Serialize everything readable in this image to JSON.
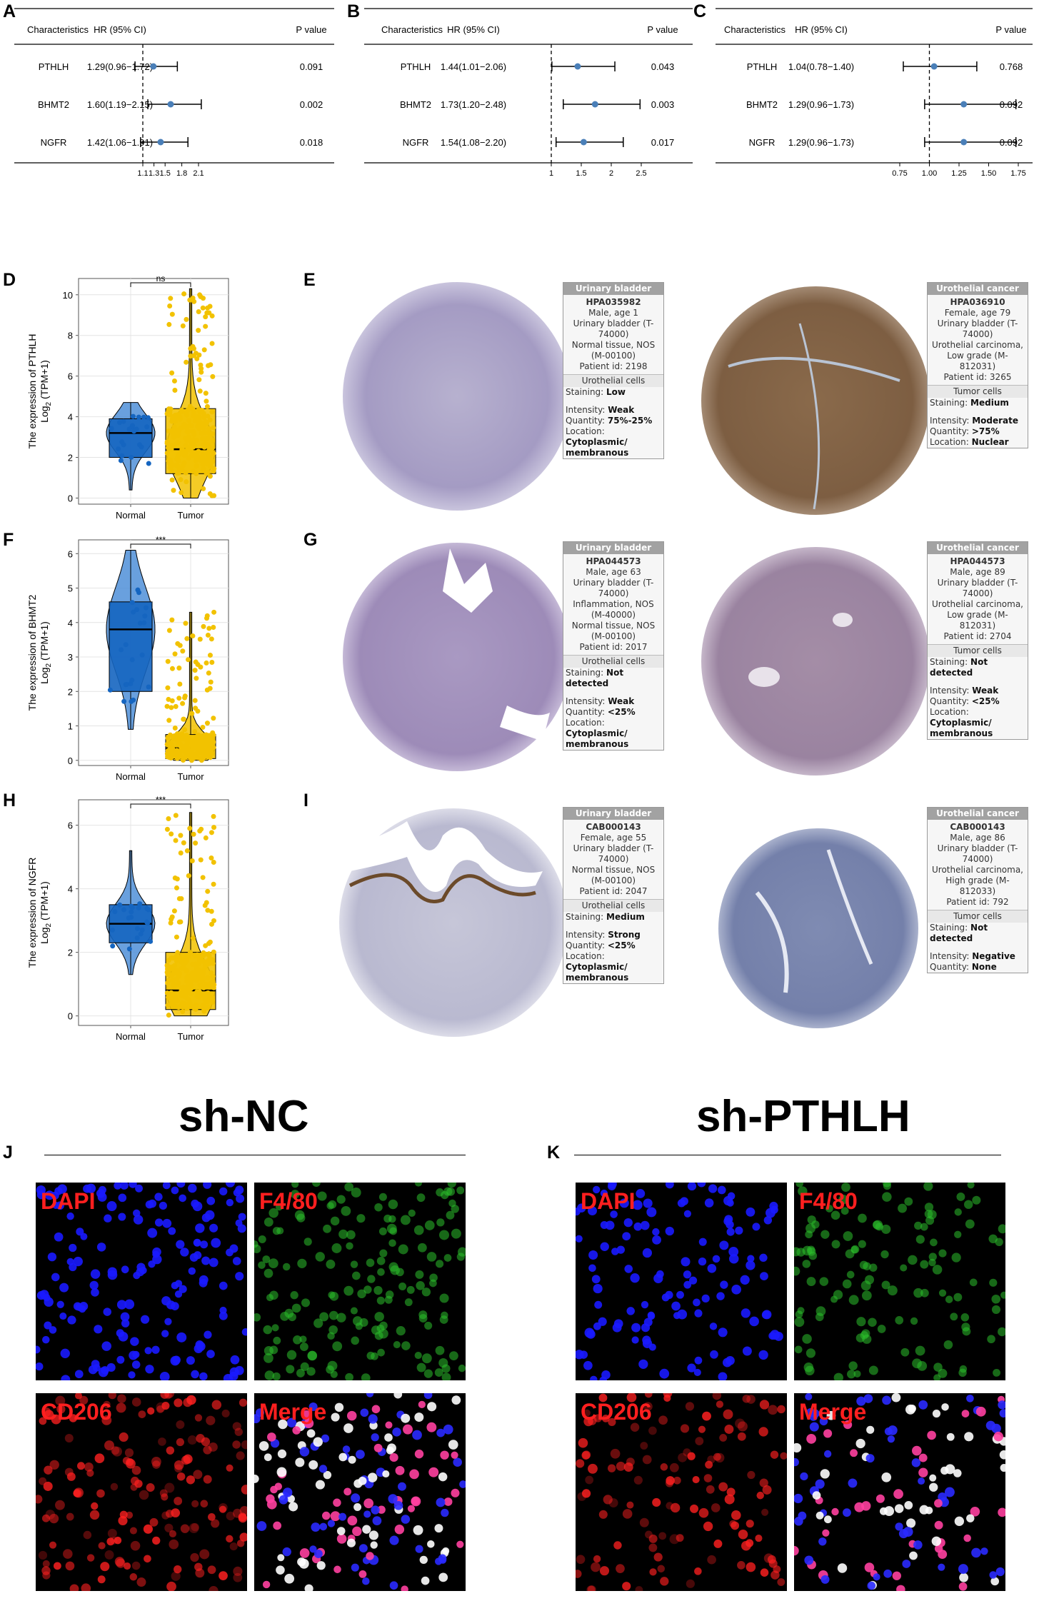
{
  "panel_letters": {
    "A": "A",
    "B": "B",
    "C": "C",
    "D": "D",
    "E": "E",
    "F": "F",
    "G": "G",
    "H": "H",
    "I": "I",
    "J": "J",
    "K": "K"
  },
  "forest_headers": {
    "characteristics": "Characteristics",
    "hr": "HR (95% CI)",
    "pvalue": "P value"
  },
  "boxplot_text": {
    "ylabel_prefix": "The expression of",
    "ylabel_unit": "Log",
    "ylabel_sub": "2",
    "ylabel_rest": " (TPM+1)",
    "normal": "Normal",
    "tumor": "Tumor"
  },
  "ihc_cards": [
    {
      "title": "Urinary bladder",
      "code": "HPA035982",
      "meta": "Male, age 1\nUrinary bladder (T-74000)\nNormal tissue, NOS (M-00100)\nPatient id: 2198",
      "cell": "Urothelial cells",
      "staining": "Low",
      "intensity": "Weak",
      "quantity": "75%-25%",
      "location": "Cytoplasmic/ membranous"
    },
    {
      "title": "Urothelial cancer",
      "code": "HPA036910",
      "meta": "Female, age 79\nUrinary bladder (T-74000)\nUrothelial carcinoma, Low grade (M-812031)\nPatient id: 3265",
      "cell": "Tumor cells",
      "staining": "Medium",
      "intensity": "Moderate",
      "quantity": ">75%",
      "location": "Nuclear"
    },
    {
      "title": "Urinary bladder",
      "code": "HPA044573",
      "meta": "Male, age 63\nUrinary bladder (T-74000)\nInflammation, NOS (M-40000)\nNormal tissue, NOS (M-00100)\nPatient id: 2017",
      "cell": "Urothelial cells",
      "staining": "Not detected",
      "intensity": "Weak",
      "quantity": "<25%",
      "location": "Cytoplasmic/ membranous"
    },
    {
      "title": "Urothelial cancer",
      "code": "HPA044573",
      "meta": "Male, age 89\nUrinary bladder (T-74000)\nUrothelial carcinoma, Low grade (M-812031)\nPatient id: 2704",
      "cell": "Tumor cells",
      "staining": "Not detected",
      "intensity": "Weak",
      "quantity": "<25%",
      "location": "Cytoplasmic/ membranous"
    },
    {
      "title": "Urinary bladder",
      "code": "CAB000143",
      "meta": "Female, age 55\nUrinary bladder (T-74000)\nNormal tissue, NOS (M-00100)\nPatient id: 2047",
      "cell": "Urothelial cells",
      "staining": "Medium",
      "intensity": "Strong",
      "quantity": "<25%",
      "location": "Cytoplasmic/ membranous"
    },
    {
      "title": "Urothelial cancer",
      "code": "CAB000143",
      "meta": "Male, age 86\nUrinary bladder (T-74000)\nUrothelial carcinoma, High grade (M-812033)\nPatient id: 792",
      "cell": "Tumor cells",
      "staining": "Not detected",
      "intensity": "Negative",
      "quantity": "None",
      "location": ""
    }
  ],
  "ihc_field_labels": {
    "staining": "Staining:",
    "intensity": "Intensity:",
    "quantity": "Quantity:",
    "location": "Location:"
  },
  "fluo_titles": {
    "left": "sh-NC",
    "right": "sh-PTHLH"
  },
  "fluo_channels": [
    "DAPI",
    "F4/80",
    "CD206",
    "Merge"
  ],
  "colors": {
    "normal": "#1565c0",
    "normal_light": "#4f8fd8",
    "tumor": "#f2c200",
    "point": "#4a7fb8",
    "forest_line": "#000000"
  },
  "chart_data": [
    {
      "id": "A",
      "type": "forest",
      "xticks": [
        1.1,
        1.3,
        1.5,
        1.8,
        2.1
      ],
      "xlim": [
        1.1,
        2.1
      ],
      "ref": 1.1,
      "rows": [
        {
          "name": "PTHLH",
          "hr_text": "1.29(0.96−1.72)",
          "hr": 1.29,
          "lo": 0.96,
          "hi": 1.72,
          "p": "0.091"
        },
        {
          "name": "BHMT2",
          "hr_text": "1.60(1.19−2.15)",
          "hr": 1.6,
          "lo": 1.19,
          "hi": 2.15,
          "p": "0.002"
        },
        {
          "name": "NGFR",
          "hr_text": "1.42(1.06−1.91)",
          "hr": 1.42,
          "lo": 1.06,
          "hi": 1.91,
          "p": "0.018"
        }
      ]
    },
    {
      "id": "B",
      "type": "forest",
      "xticks": [
        1.0,
        1.5,
        2.0,
        2.5
      ],
      "xlim": [
        1.0,
        2.5
      ],
      "ref": 1.0,
      "rows": [
        {
          "name": "PTHLH",
          "hr_text": "1.44(1.01−2.06)",
          "hr": 1.44,
          "lo": 1.01,
          "hi": 2.06,
          "p": "0.043"
        },
        {
          "name": "BHMT2",
          "hr_text": "1.73(1.20−2.48)",
          "hr": 1.73,
          "lo": 1.2,
          "hi": 2.48,
          "p": "0.003"
        },
        {
          "name": "NGFR",
          "hr_text": "1.54(1.08−2.20)",
          "hr": 1.54,
          "lo": 1.08,
          "hi": 2.2,
          "p": "0.017"
        }
      ]
    },
    {
      "id": "C",
      "type": "forest",
      "xticks": [
        0.75,
        1.0,
        1.25,
        1.5,
        1.75
      ],
      "xtick_labels": [
        "0.75",
        "1.00",
        "1.25",
        "1.50",
        "1.75"
      ],
      "xlim": [
        0.75,
        1.75
      ],
      "ref": 1.0,
      "rows": [
        {
          "name": "PTHLH",
          "hr_text": "1.04(0.78−1.40)",
          "hr": 1.04,
          "lo": 0.78,
          "hi": 1.4,
          "p": "0.768"
        },
        {
          "name": "BHMT2",
          "hr_text": "1.29(0.96−1.73)",
          "hr": 1.29,
          "lo": 0.96,
          "hi": 1.73,
          "p": "0.092"
        },
        {
          "name": "NGFR",
          "hr_text": "1.29(0.96−1.73)",
          "hr": 1.29,
          "lo": 0.96,
          "hi": 1.73,
          "p": "0.092"
        }
      ]
    },
    {
      "id": "D",
      "type": "box",
      "gene": "PTHLH",
      "yticks": [
        0,
        2,
        4,
        6,
        8,
        10
      ],
      "ylim": [
        -0.3,
        10.8
      ],
      "sig": "ns",
      "normal": {
        "min": 0.4,
        "q1": 2.0,
        "median": 3.2,
        "q3": 3.9,
        "max": 4.7
      },
      "tumor": {
        "min": 0.0,
        "q1": 1.2,
        "median": 2.4,
        "q3": 4.4,
        "max": 10.3
      }
    },
    {
      "id": "F",
      "type": "box",
      "gene": "BHMT2",
      "yticks": [
        0,
        1,
        2,
        3,
        4,
        5,
        6
      ],
      "ylim": [
        -0.15,
        6.4
      ],
      "sig": "***",
      "normal": {
        "min": 0.9,
        "q1": 2.0,
        "median": 3.8,
        "q3": 4.6,
        "max": 6.1
      },
      "tumor": {
        "min": 0.0,
        "q1": 0.05,
        "median": 0.35,
        "q3": 0.75,
        "max": 4.3
      }
    },
    {
      "id": "H",
      "type": "box",
      "gene": "NGFR",
      "yticks": [
        0,
        2,
        4,
        6
      ],
      "ylim": [
        -0.3,
        6.8
      ],
      "sig": "***",
      "normal": {
        "min": 1.3,
        "q1": 2.3,
        "median": 2.9,
        "q3": 3.5,
        "max": 5.2
      },
      "tumor": {
        "min": 0.0,
        "q1": 0.2,
        "median": 0.8,
        "q3": 2.0,
        "max": 6.4
      }
    }
  ]
}
